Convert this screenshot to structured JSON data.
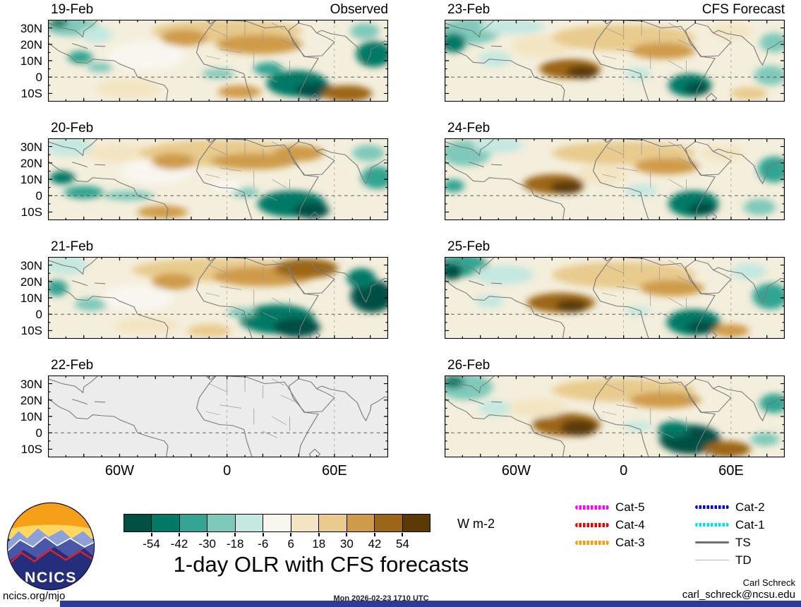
{
  "title": "1-day OLR with CFS forecasts",
  "columns": {
    "left": "Observed",
    "right": "CFS Forecast"
  },
  "axis": {
    "lat_ticks": [
      "30N",
      "20N",
      "10N",
      "0",
      "10S"
    ],
    "lon_ticks": [
      "60W",
      "0",
      "60E"
    ]
  },
  "colorbar": {
    "tick_labels": [
      "-54",
      "-42",
      "-30",
      "-18",
      "-6",
      "6",
      "18",
      "30",
      "42",
      "54"
    ],
    "unit": "W m-2",
    "colors": [
      "#005044",
      "#007a66",
      "#33a592",
      "#7fc9ba",
      "#c5e8e0",
      "#f8f6ee",
      "#f3e5c2",
      "#e8cb8d",
      "#cf9b4a",
      "#9c6616",
      "#5c3a08"
    ]
  },
  "legend": {
    "items": [
      {
        "label": "Cat-5",
        "color": "#ff00ff",
        "weight": 6,
        "style": "dotted"
      },
      {
        "label": "Cat-4",
        "color": "#ee0000",
        "weight": 6,
        "style": "dotted"
      },
      {
        "label": "Cat-3",
        "color": "#ff9900",
        "weight": 6,
        "style": "dotted"
      },
      {
        "label": "Cat-2",
        "color": "#0000ee",
        "weight": 5,
        "style": "dotted"
      },
      {
        "label": "Cat-1",
        "color": "#00e0ee",
        "weight": 5,
        "style": "dotted"
      },
      {
        "label": "TS",
        "color": "#707070",
        "weight": 3,
        "style": "solid"
      },
      {
        "label": "TD",
        "color": "#b8b8b8",
        "weight": 1.5,
        "style": "solid"
      }
    ]
  },
  "logo_text": "NCICS",
  "footer": {
    "site": "ncics.org/mjo",
    "timestamp": "Mon 2026-02-23 1710 UTC",
    "credit_name": "Carl Schreck",
    "credit_email": "carl_schreck@ncsu.edu"
  },
  "bottom_bar_color": "#2e3a97",
  "chart_data": {
    "type": "heatmap",
    "variable": "1-day OLR anomaly with CFS forecasts",
    "unit": "W m-2",
    "colorbar_levels": [
      -54,
      -42,
      -30,
      -18,
      -6,
      6,
      18,
      30,
      42,
      54
    ],
    "map_extent": {
      "lon": [
        -100,
        90
      ],
      "lat": [
        -15,
        35
      ]
    },
    "lat_tick_values": [
      30,
      20,
      10,
      0,
      -10
    ],
    "lon_tick_values": [
      -60,
      0,
      60
    ],
    "panels": [
      {
        "date": "19-Feb",
        "column": "Observed",
        "blank": false,
        "blobs": [
          [
            13,
            4,
            15,
            6,
            3
          ],
          [
            6,
            2,
            5,
            3,
            1
          ],
          [
            27,
            9,
            9,
            5,
            4
          ],
          [
            18,
            23,
            7,
            4,
            2
          ],
          [
            29,
            29,
            7,
            3,
            3
          ],
          [
            55,
            22,
            22,
            9,
            5
          ],
          [
            45,
            42,
            18,
            6,
            6
          ],
          [
            100,
            7,
            42,
            7,
            7
          ],
          [
            118,
            15,
            24,
            6,
            8
          ],
          [
            76,
            11,
            13,
            5,
            8
          ],
          [
            95,
            33,
            9,
            3,
            3
          ],
          [
            139,
            39,
            17,
            8,
            1
          ],
          [
            149,
            43,
            11,
            5,
            0
          ],
          [
            123,
            30,
            8,
            4,
            2
          ],
          [
            182,
            21,
            10,
            8,
            1
          ],
          [
            177,
            7,
            8,
            5,
            3
          ],
          [
            167,
            45,
            14,
            5,
            9
          ],
          [
            107,
            44,
            12,
            4,
            8
          ]
        ]
      },
      {
        "date": "20-Feb",
        "column": "Observed",
        "blank": false,
        "blobs": [
          [
            12,
            5,
            13,
            6,
            4
          ],
          [
            40,
            9,
            18,
            6,
            6
          ],
          [
            8,
            24,
            7,
            4,
            1
          ],
          [
            20,
            33,
            11,
            4,
            2
          ],
          [
            45,
            35,
            14,
            3,
            3
          ],
          [
            60,
            20,
            20,
            8,
            5
          ],
          [
            95,
            9,
            44,
            8,
            7
          ],
          [
            115,
            14,
            24,
            5,
            8
          ],
          [
            140,
            9,
            14,
            5,
            8
          ],
          [
            70,
            14,
            12,
            5,
            8
          ],
          [
            136,
            40,
            19,
            8,
            1
          ],
          [
            147,
            44,
            10,
            5,
            0
          ],
          [
            110,
            33,
            8,
            3,
            3
          ],
          [
            184,
            24,
            9,
            7,
            2
          ],
          [
            179,
            9,
            9,
            5,
            3
          ],
          [
            64,
            45,
            14,
            4,
            8
          ],
          [
            100,
            29,
            9,
            4,
            5
          ]
        ]
      },
      {
        "date": "21-Feb",
        "column": "Observed",
        "blank": false,
        "blobs": [
          [
            10,
            5,
            12,
            6,
            4
          ],
          [
            5,
            19,
            6,
            5,
            2
          ],
          [
            24,
            29,
            9,
            4,
            3
          ],
          [
            50,
            25,
            20,
            8,
            5
          ],
          [
            95,
            8,
            48,
            7,
            7
          ],
          [
            120,
            12,
            28,
            6,
            8
          ],
          [
            144,
            7,
            18,
            6,
            9
          ],
          [
            70,
            15,
            12,
            5,
            8
          ],
          [
            128,
            38,
            21,
            9,
            1
          ],
          [
            139,
            43,
            13,
            6,
            0
          ],
          [
            108,
            34,
            8,
            3,
            3
          ],
          [
            181,
            24,
            12,
            10,
            0
          ],
          [
            175,
            13,
            8,
            6,
            1
          ],
          [
            55,
            42,
            18,
            5,
            6
          ],
          [
            90,
            45,
            12,
            4,
            7
          ]
        ]
      },
      {
        "date": "22-Feb",
        "column": "Observed",
        "blank": true,
        "blobs": []
      },
      {
        "date": "23-Feb",
        "column": "CFS Forecast",
        "blank": false,
        "blobs": [
          [
            14,
            7,
            17,
            8,
            3
          ],
          [
            5,
            14,
            7,
            6,
            1
          ],
          [
            38,
            4,
            18,
            5,
            4
          ],
          [
            28,
            24,
            9,
            5,
            4
          ],
          [
            70,
            30,
            17,
            6,
            9
          ],
          [
            77,
            32,
            9,
            4,
            10
          ],
          [
            55,
            16,
            18,
            7,
            6
          ],
          [
            100,
            11,
            40,
            8,
            7
          ],
          [
            122,
            19,
            18,
            5,
            8
          ],
          [
            108,
            33,
            7,
            4,
            4
          ],
          [
            137,
            40,
            12,
            7,
            1
          ],
          [
            141,
            42,
            7,
            4,
            0
          ],
          [
            160,
            7,
            12,
            5,
            6
          ],
          [
            184,
            14,
            8,
            6,
            3
          ],
          [
            182,
            34,
            9,
            6,
            3
          ],
          [
            170,
            45,
            10,
            4,
            7
          ]
        ]
      },
      {
        "date": "24-Feb",
        "column": "CFS Forecast",
        "blank": false,
        "blobs": [
          [
            12,
            9,
            14,
            8,
            3
          ],
          [
            30,
            4,
            14,
            5,
            4
          ],
          [
            5,
            29,
            6,
            4,
            2
          ],
          [
            61,
            28,
            17,
            6,
            9
          ],
          [
            68,
            30,
            9,
            4,
            10
          ],
          [
            100,
            9,
            40,
            7,
            7
          ],
          [
            124,
            17,
            18,
            5,
            8
          ],
          [
            110,
            32,
            9,
            4,
            4
          ],
          [
            139,
            40,
            14,
            8,
            1
          ],
          [
            144,
            43,
            8,
            4,
            0
          ],
          [
            184,
            19,
            9,
            8,
            2
          ],
          [
            176,
            42,
            9,
            5,
            3
          ],
          [
            155,
            9,
            12,
            5,
            6
          ],
          [
            88,
            22,
            14,
            6,
            6
          ]
        ]
      },
      {
        "date": "25-Feb",
        "column": "CFS Forecast",
        "blank": false,
        "blobs": [
          [
            10,
            5,
            14,
            7,
            2
          ],
          [
            4,
            9,
            6,
            5,
            0
          ],
          [
            33,
            11,
            17,
            6,
            4
          ],
          [
            25,
            27,
            8,
            4,
            4
          ],
          [
            65,
            28,
            19,
            6,
            9
          ],
          [
            71,
            30,
            9,
            4,
            10
          ],
          [
            100,
            11,
            40,
            8,
            7
          ],
          [
            127,
            19,
            18,
            5,
            8
          ],
          [
            108,
            33,
            7,
            3,
            4
          ],
          [
            139,
            40,
            15,
            8,
            1
          ],
          [
            144,
            43,
            9,
            4,
            0
          ],
          [
            182,
            24,
            10,
            8,
            2
          ],
          [
            170,
            9,
            10,
            5,
            4
          ],
          [
            160,
            45,
            10,
            4,
            8
          ]
        ]
      },
      {
        "date": "26-Feb",
        "column": "CFS Forecast",
        "blank": false,
        "blobs": [
          [
            12,
            7,
            15,
            8,
            3
          ],
          [
            5,
            4,
            6,
            4,
            1
          ],
          [
            28,
            20,
            9,
            5,
            4
          ],
          [
            68,
            30,
            19,
            7,
            9
          ],
          [
            75,
            32,
            10,
            5,
            10
          ],
          [
            52,
            20,
            16,
            6,
            6
          ],
          [
            100,
            9,
            40,
            7,
            7
          ],
          [
            123,
            15,
            20,
            5,
            8
          ],
          [
            108,
            31,
            8,
            3,
            4
          ],
          [
            137,
            39,
            17,
            9,
            0
          ],
          [
            128,
            33,
            9,
            5,
            1
          ],
          [
            158,
            45,
            13,
            5,
            9
          ],
          [
            184,
            17,
            8,
            6,
            2
          ],
          [
            179,
            39,
            8,
            4,
            3
          ]
        ]
      }
    ]
  }
}
